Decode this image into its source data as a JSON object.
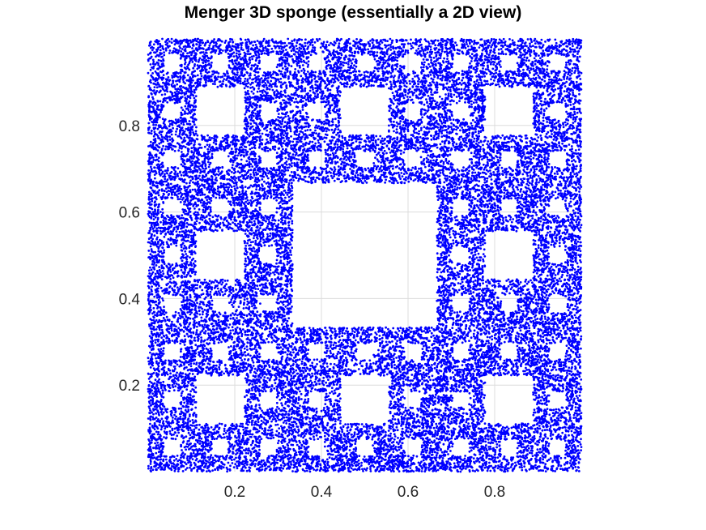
{
  "chart_data": {
    "type": "scatter",
    "title": "Menger 3D sponge (essentially a 2D view)",
    "xlabel": "",
    "ylabel": "",
    "xlim": [
      0,
      1
    ],
    "ylim": [
      0,
      1
    ],
    "xticks": [
      0.2,
      0.4,
      0.6,
      0.8
    ],
    "xtick_labels": [
      "0.2",
      "0.4",
      "0.6",
      "0.8"
    ],
    "yticks": [
      0.2,
      0.4,
      0.6,
      0.8
    ],
    "ytick_labels": [
      "0.2",
      "0.4",
      "0.6",
      "0.8"
    ],
    "grid": true,
    "aspect": "equal",
    "series": [
      {
        "color": "#0000ff",
        "marker": "dot",
        "pattern": "Sierpinski carpet projection (Menger sponge), recursion depth 3",
        "approx_points": 26000,
        "empty_squares_depth1": [
          [
            0.3333,
            0.3333,
            0.6667,
            0.6667
          ]
        ]
      }
    ]
  }
}
